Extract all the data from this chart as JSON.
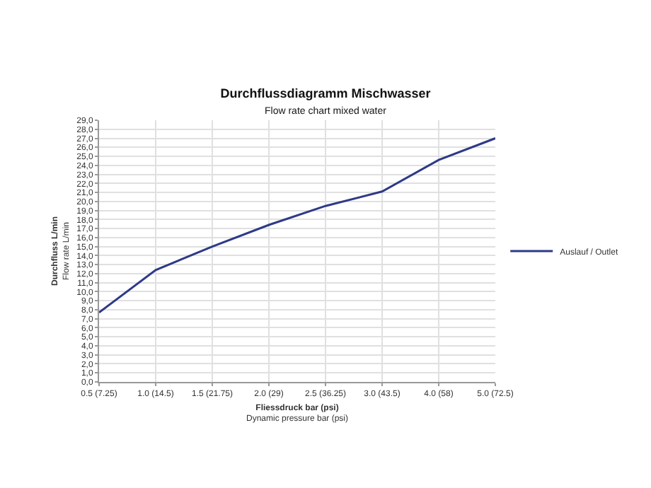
{
  "chart_data": {
    "type": "line",
    "title": "Durchflussdiagramm Mischwasser",
    "subtitle": "Flow rate chart mixed water",
    "xlabel": "Fliessdruck bar (psi)\nDynamic pressure bar (psi)",
    "ylabel": "Durchfluss L/min\nFlow rate L/min",
    "categories": [
      "0.5 (7.25)",
      "1.0 (14.5)",
      "1.5 (21.75)",
      "2.0 (29)",
      "2.5 (36.25)",
      "3.0 (43.5)",
      "4.0 (58)",
      "5.0 (72.5)"
    ],
    "series": [
      {
        "name": "Auslauf / Outlet",
        "color": "#2e3a87",
        "values": [
          7.7,
          12.4,
          15.0,
          17.4,
          19.5,
          21.1,
          24.6,
          27.0
        ]
      }
    ],
    "ylim": [
      0,
      29
    ],
    "yticks": [
      {
        "value": 0,
        "label": "0,0"
      },
      {
        "value": 1,
        "label": "1,0"
      },
      {
        "value": 2,
        "label": "2,0"
      },
      {
        "value": 3,
        "label": "3,0"
      },
      {
        "value": 4,
        "label": "4,0"
      },
      {
        "value": 5,
        "label": "5,0"
      },
      {
        "value": 6,
        "label": "6,0"
      },
      {
        "value": 7,
        "label": "7,0"
      },
      {
        "value": 8,
        "label": "8,0"
      },
      {
        "value": 9,
        "label": "9,0"
      },
      {
        "value": 10,
        "label": "10,0"
      },
      {
        "value": 11,
        "label": "11,0"
      },
      {
        "value": 12,
        "label": "12,0"
      },
      {
        "value": 13,
        "label": "13,0"
      },
      {
        "value": 14,
        "label": "14,0"
      },
      {
        "value": 15,
        "label": "15,0"
      },
      {
        "value": 16,
        "label": "16,0"
      },
      {
        "value": 17,
        "label": "17,0"
      },
      {
        "value": 18,
        "label": "18,0"
      },
      {
        "value": 19,
        "label": "19,0"
      },
      {
        "value": 20,
        "label": "20,0"
      },
      {
        "value": 21,
        "label": "21,0"
      },
      {
        "value": 22,
        "label": "22,0"
      },
      {
        "value": 23,
        "label": "23,0"
      },
      {
        "value": 24,
        "label": "24,0"
      },
      {
        "value": 25,
        "label": "25,0"
      },
      {
        "value": 26,
        "label": "26,0"
      },
      {
        "value": 27,
        "label": "27,0"
      },
      {
        "value": 28,
        "label": "28,0"
      },
      {
        "value": 29,
        "label": "29,0"
      }
    ],
    "grid": true,
    "legend": "right",
    "marker": "none",
    "line_style": "solid"
  }
}
